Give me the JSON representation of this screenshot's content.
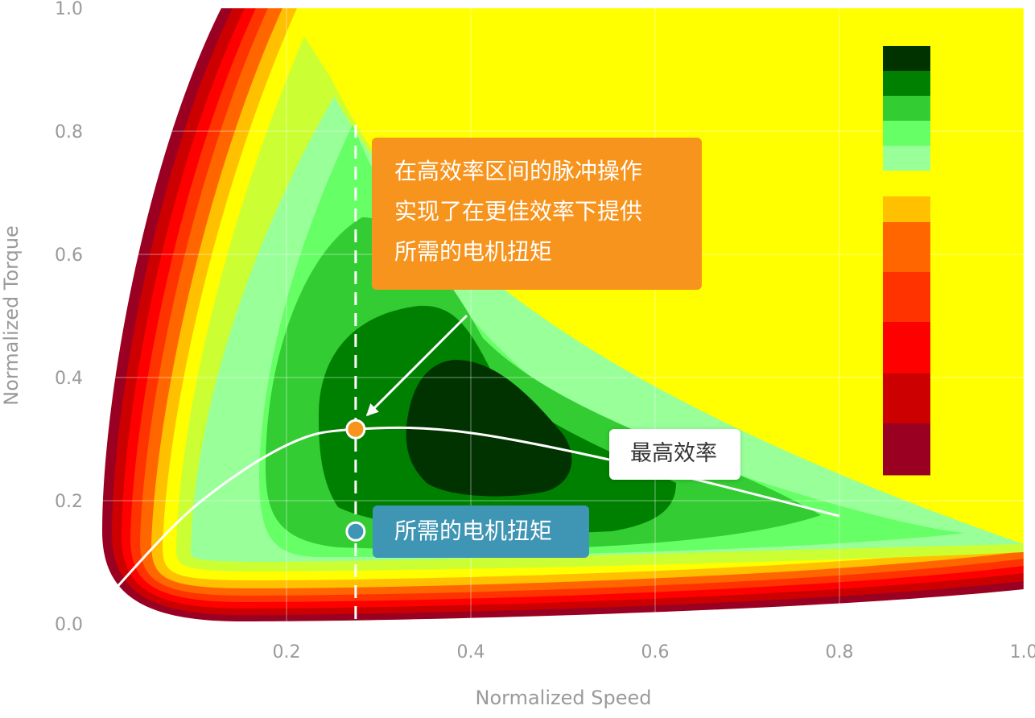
{
  "chart_data": {
    "type": "contour",
    "title": "",
    "xlabel": "Normalized Speed",
    "ylabel": "Normalized Torque",
    "xlim": [
      0,
      1.0
    ],
    "ylim": [
      0,
      1.0
    ],
    "x_ticks": [
      "0.2",
      "0.4",
      "0.6",
      "0.8",
      "1.0"
    ],
    "y_ticks": [
      "0.0",
      "0.2",
      "0.4",
      "0.6",
      "0.8",
      "1.0"
    ],
    "grid": true,
    "colorbar": {
      "placement": "top-right",
      "colors": [
        "#003300",
        "#008000",
        "#33cc33",
        "#66ff66",
        "#99ff99",
        "#ffff00",
        "#ffc000",
        "#ff6600",
        "#ff3300",
        "#ff0000",
        "#cc0000",
        "#990022"
      ]
    },
    "contour_levels_outer_to_inner": [
      "#990022",
      "#cc0000",
      "#ff0000",
      "#ff3300",
      "#ff6600",
      "#ffc000",
      "#ffff00",
      "#ccff33",
      "#99ff99",
      "#66ff66",
      "#33cc33",
      "#008000",
      "#003300"
    ],
    "max_efficiency_curve": {
      "x": [
        0.01,
        0.1,
        0.2,
        0.275,
        0.4,
        0.6,
        0.8
      ],
      "y": [
        0.05,
        0.19,
        0.29,
        0.316,
        0.31,
        0.25,
        0.175
      ]
    },
    "operating_line": {
      "x": 0.275
    },
    "points": [
      {
        "name": "max-efficiency-point",
        "x": 0.275,
        "y": 0.316,
        "color": "#f7941d"
      },
      {
        "name": "required-torque-point",
        "x": 0.275,
        "y": 0.15,
        "color": "#3f96b4"
      }
    ],
    "annotations": {
      "pulse_operation": [
        "在高效率区间的脉冲操作",
        "实现了在更佳效率下提供",
        "所需的电机扭矩"
      ],
      "max_efficiency": "最高效率",
      "required_torque": "所需的电机扭矩"
    },
    "colors": {
      "orange": "#f7941d",
      "blue": "#3f96b4"
    }
  }
}
